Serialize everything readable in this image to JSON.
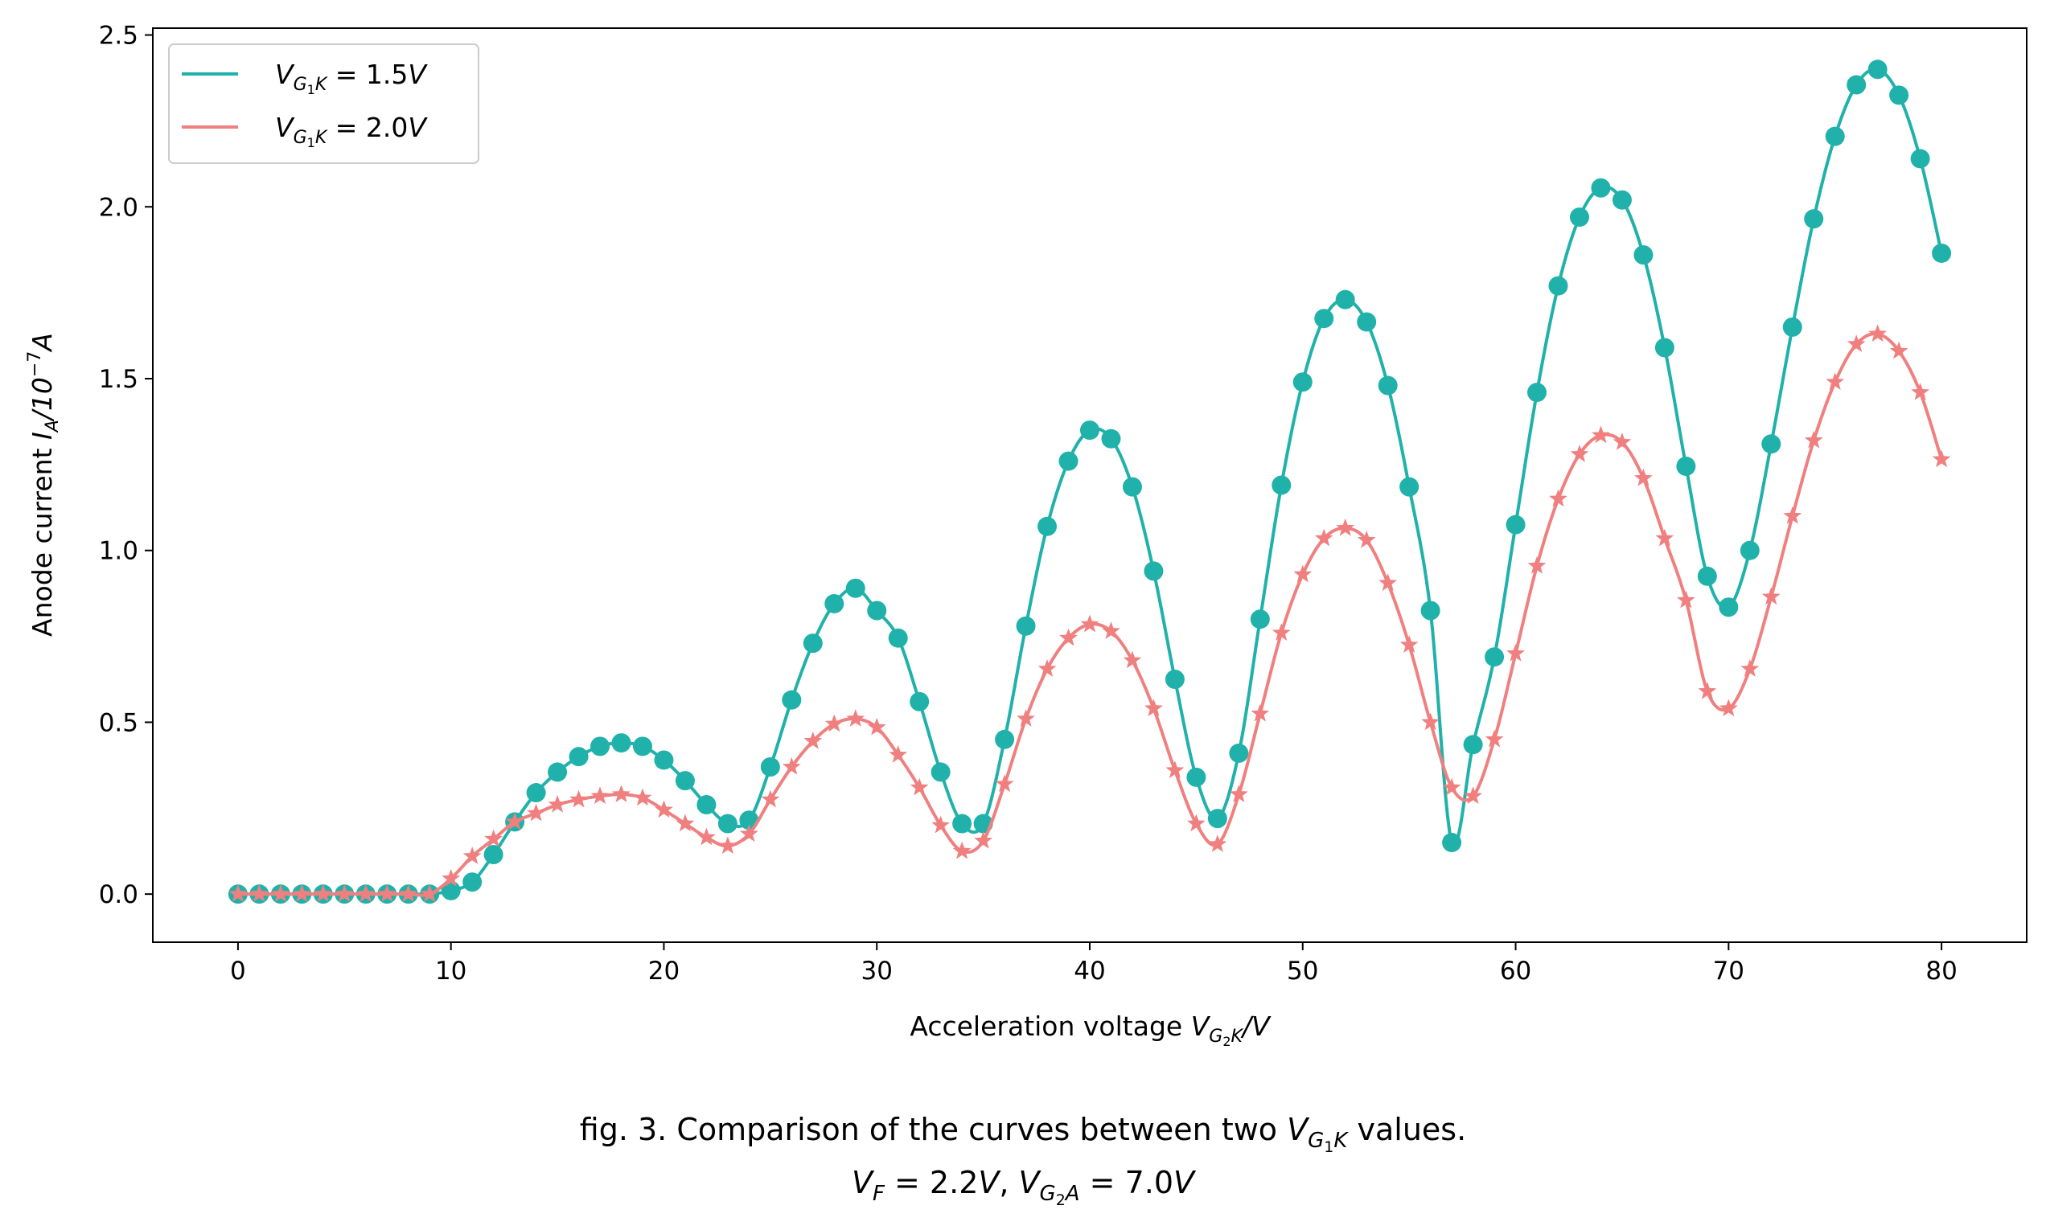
{
  "chart_data": {
    "type": "line",
    "xlabel": "Acceleration voltage V_G2K/V",
    "xlabel_parts": {
      "main": "Acceleration voltage ",
      "var": "V",
      "sub": "G",
      "subsub": "2",
      "subtail": "K",
      "tail": "/V"
    },
    "ylabel": "Anode current I_A/10^-7 A",
    "ylabel_parts": {
      "main": "Anode current ",
      "var": "I",
      "sub": "A",
      "mid": "/10",
      "sup": "−7",
      "tail": "A"
    },
    "xlim": [
      -4,
      84
    ],
    "ylim": [
      -0.14,
      2.52
    ],
    "x_ticks": [
      0,
      10,
      20,
      30,
      40,
      50,
      60,
      70,
      80
    ],
    "y_ticks": [
      0.0,
      0.5,
      1.0,
      1.5,
      2.0,
      2.5
    ],
    "x_tick_labels": [
      "0",
      "10",
      "20",
      "30",
      "40",
      "50",
      "60",
      "70",
      "80"
    ],
    "y_tick_labels": [
      "0.0",
      "0.5",
      "1.0",
      "1.5",
      "2.0",
      "2.5"
    ],
    "grid": false,
    "legend_position": "top-left",
    "x": [
      0,
      1,
      2,
      3,
      4,
      5,
      6,
      7,
      8,
      9,
      10,
      11,
      12,
      13,
      14,
      15,
      16,
      17,
      18,
      19,
      20,
      21,
      22,
      23,
      24,
      25,
      26,
      27,
      28,
      29,
      30,
      31,
      32,
      33,
      34,
      35,
      36,
      37,
      38,
      39,
      40,
      41,
      42,
      43,
      44,
      45,
      46,
      47,
      48,
      49,
      50,
      51,
      52,
      53,
      54,
      55,
      56,
      57,
      58,
      59,
      60,
      61,
      62,
      63,
      64,
      65,
      66,
      67,
      68,
      69,
      70,
      71,
      72,
      73,
      74,
      75,
      76,
      77,
      78,
      79,
      80
    ],
    "series": [
      {
        "name": "V_G1K = 1.5V",
        "legend_label": {
          "var": "V",
          "sub": "G",
          "subsub": "1",
          "subtail": "K",
          "eq": " = 1.5",
          "unit": "V"
        },
        "color": "#20b2aa",
        "marker": "circle",
        "values": [
          0,
          0,
          0,
          0,
          0,
          0,
          0,
          0,
          0,
          0,
          0.01,
          0.035,
          0.115,
          0.21,
          0.295,
          0.355,
          0.4,
          0.43,
          0.44,
          0.43,
          0.39,
          0.33,
          0.26,
          0.205,
          0.215,
          0.37,
          0.565,
          0.73,
          0.845,
          0.89,
          0.825,
          0.745,
          0.56,
          0.355,
          0.205,
          0.205,
          0.45,
          0.78,
          1.07,
          1.26,
          1.35,
          1.325,
          1.185,
          0.94,
          0.625,
          0.34,
          0.22,
          0.41,
          0.8,
          1.19,
          1.49,
          1.675,
          1.73,
          1.665,
          1.48,
          1.185,
          0.825,
          0.15,
          0.435,
          0.69,
          1.075,
          1.46,
          1.77,
          1.97,
          2.055,
          2.02,
          1.86,
          1.59,
          1.245,
          0.925,
          0.835,
          1.0,
          1.31,
          1.65,
          1.965,
          2.205,
          2.355,
          2.4,
          2.325,
          2.14,
          1.865
        ]
      },
      {
        "name": "V_G1K = 2.0V",
        "legend_label": {
          "var": "V",
          "sub": "G",
          "subsub": "1",
          "subtail": "K",
          "eq": " = 2.0",
          "unit": "V"
        },
        "color": "#f08080",
        "marker": "star",
        "values": [
          0,
          0,
          0,
          0,
          0,
          0,
          0,
          0,
          0,
          0,
          0.045,
          0.11,
          0.16,
          0.21,
          0.235,
          0.26,
          0.275,
          0.285,
          0.29,
          0.28,
          0.245,
          0.205,
          0.165,
          0.14,
          0.175,
          0.275,
          0.37,
          0.445,
          0.495,
          0.51,
          0.485,
          0.405,
          0.31,
          0.2,
          0.125,
          0.155,
          0.32,
          0.51,
          0.655,
          0.745,
          0.785,
          0.765,
          0.68,
          0.54,
          0.36,
          0.205,
          0.145,
          0.29,
          0.525,
          0.76,
          0.93,
          1.035,
          1.065,
          1.03,
          0.905,
          0.725,
          0.5,
          0.31,
          0.285,
          0.45,
          0.7,
          0.955,
          1.15,
          1.28,
          1.335,
          1.315,
          1.21,
          1.035,
          0.855,
          0.59,
          0.54,
          0.655,
          0.865,
          1.1,
          1.32,
          1.49,
          1.6,
          1.63,
          1.58,
          1.46,
          1.265
        ]
      }
    ]
  },
  "caption": {
    "line1_parts": {
      "pre": "fig. 3. Comparison of the curves between two ",
      "var": "V",
      "sub": "G",
      "subsub": "1",
      "subtail": "K",
      "post": " values."
    },
    "line2_parts": {
      "v1": "V",
      "s1": "F",
      "e1": " = 2.2",
      "u1": "V",
      "comma": ", ",
      "v2": "V",
      "s2": "G",
      "ss2": "2",
      "st2": "A",
      "e2": " = 7.0",
      "u2": "V"
    }
  }
}
